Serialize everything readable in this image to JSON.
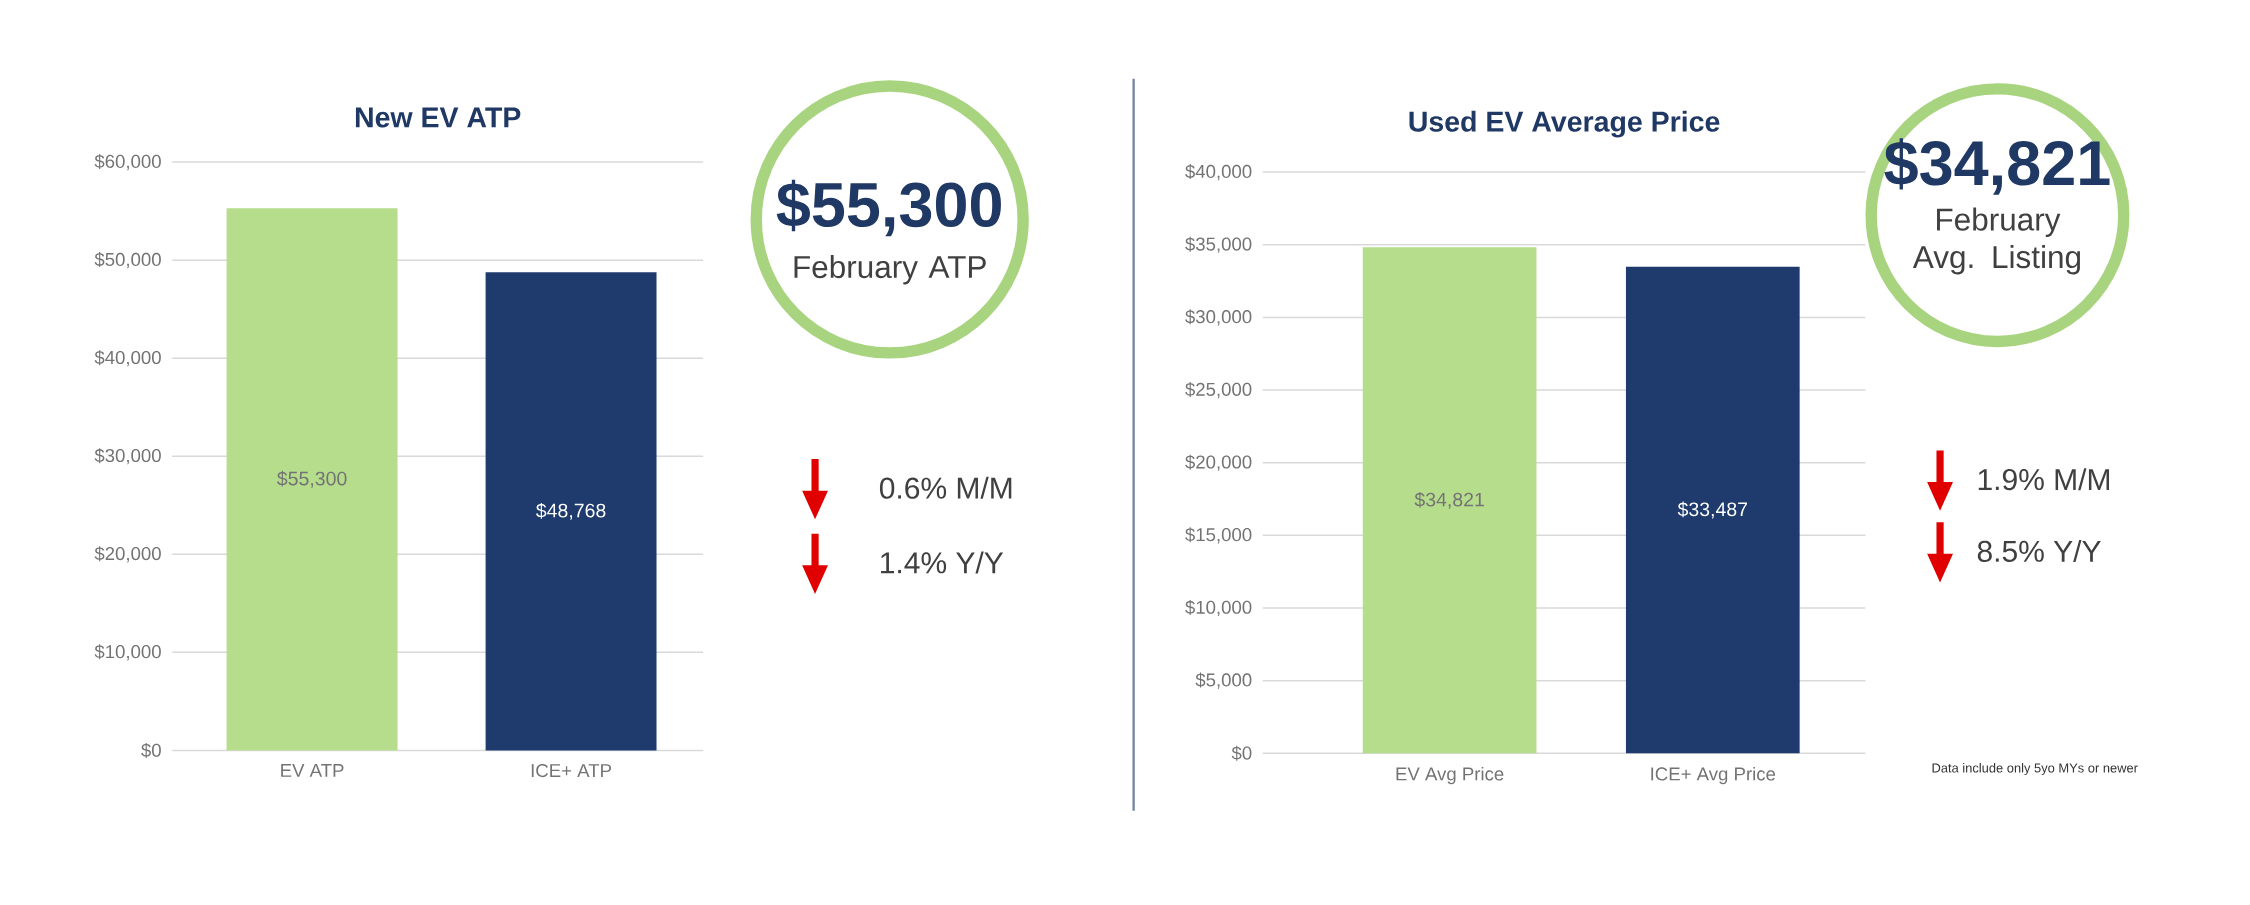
{
  "chart_data": [
    {
      "type": "bar",
      "title": "New EV ATP",
      "categories": [
        "EV ATP",
        "ICE+ ATP"
      ],
      "values": [
        55300,
        48768
      ],
      "colors": [
        "#b5dd8c",
        "#1f3b6e"
      ],
      "value_labels": [
        "$55,300",
        "$48,768"
      ],
      "ylim": [
        0,
        60000
      ],
      "yticks": [
        {
          "value": 0,
          "label": "$0"
        },
        {
          "value": 10000,
          "label": "$10,000"
        },
        {
          "value": 20000,
          "label": "$20,000"
        },
        {
          "value": 30000,
          "label": "$30,000"
        },
        {
          "value": 40000,
          "label": "$40,000"
        },
        {
          "value": 50000,
          "label": "$50,000"
        },
        {
          "value": 60000,
          "label": "$60,000"
        }
      ],
      "grid": "y"
    },
    {
      "type": "other",
      "title": "$55,300",
      "subtitle": "February ATP",
      "color": "#a9d47f",
      "annotations": [
        "0.6% M/M",
        "1.4% Y/Y"
      ]
    },
    {
      "type": "bar",
      "title": "Used EV Average Price",
      "categories": [
        "EV Avg Price",
        "ICE+ Avg Price"
      ],
      "values": [
        34821,
        33487
      ],
      "colors": [
        "#b5dd8c",
        "#1f3b6e"
      ],
      "value_labels": [
        "$34,821",
        "$33,487"
      ],
      "ylim": [
        0,
        40000
      ],
      "yticks": [
        {
          "value": 0,
          "label": "$0"
        },
        {
          "value": 5000,
          "label": "$5,000"
        },
        {
          "value": 10000,
          "label": "$10,000"
        },
        {
          "value": 15000,
          "label": "$15,000"
        },
        {
          "value": 20000,
          "label": "$20,000"
        },
        {
          "value": 25000,
          "label": "$25,000"
        },
        {
          "value": 30000,
          "label": "$30,000"
        },
        {
          "value": 35000,
          "label": "$35,000"
        },
        {
          "value": 40000,
          "label": "$40,000"
        }
      ],
      "grid": "y",
      "annotations": [
        "Data include only 5yo MYs or newer"
      ]
    },
    {
      "type": "other",
      "title": "$34,821",
      "subtitle": "February Avg. Listing",
      "color": "#a9d47f",
      "annotations": [
        "1.9% M/M",
        "8.5% Y/Y"
      ]
    }
  ]
}
